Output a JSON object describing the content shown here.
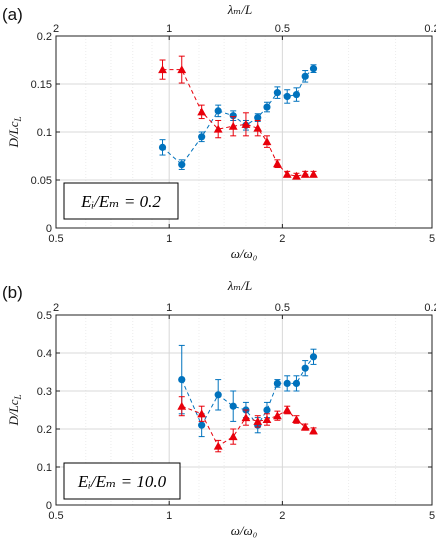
{
  "chart_data": [
    {
      "panel_label": "(a)",
      "type": "scatter",
      "x_scale": "log",
      "xlim": [
        0.5,
        5
      ],
      "x_ticks": [
        0.5,
        1,
        2,
        5
      ],
      "x_tick_labels": [
        "0.5",
        "1",
        "2",
        "5"
      ],
      "ylim": [
        0,
        0.2
      ],
      "y_ticks": [
        0,
        0.05,
        0.1,
        0.15,
        0.2
      ],
      "y_tick_labels": [
        "0",
        "0.05",
        "0.1",
        "0.15",
        "0.2"
      ],
      "xlabel": "ω/ω₀",
      "ylabel_main": "D/Lc",
      "ylabel_sub": "L",
      "top_xlabel_main": "λₘ/L",
      "top_tick_labels": [
        "2",
        "1",
        "0.5",
        "0.2"
      ],
      "top_tick_positions_x": [
        0.5,
        1,
        2,
        5
      ],
      "annotation": "Eᵢ/Eₘ = 0.2",
      "grid": true,
      "series": [
        {
          "marker": "circle",
          "color": "#0072bd",
          "x": [
            0.96,
            1.08,
            1.22,
            1.35,
            1.48,
            1.6,
            1.72,
            1.82,
            1.94,
            2.06,
            2.18,
            2.3,
            2.42
          ],
          "y": [
            0.084,
            0.066,
            0.095,
            0.122,
            0.117,
            0.107,
            0.115,
            0.126,
            0.141,
            0.137,
            0.139,
            0.158,
            0.166
          ],
          "err": [
            0.008,
            0.005,
            0.005,
            0.006,
            0.005,
            0.005,
            0.004,
            0.005,
            0.006,
            0.007,
            0.007,
            0.006,
            0.004
          ]
        },
        {
          "marker": "triangle",
          "color": "#e8000b",
          "x": [
            0.96,
            1.08,
            1.22,
            1.35,
            1.48,
            1.6,
            1.72,
            1.82,
            1.94,
            2.06,
            2.18,
            2.3,
            2.42
          ],
          "y": [
            0.165,
            0.165,
            0.121,
            0.103,
            0.106,
            0.108,
            0.104,
            0.09,
            0.067,
            0.056,
            0.054,
            0.056,
            0.056
          ],
          "err": [
            0.01,
            0.014,
            0.007,
            0.009,
            0.01,
            0.012,
            0.008,
            0.006,
            0.004,
            0.003,
            0.003,
            0.003,
            0.003
          ]
        }
      ]
    },
    {
      "panel_label": "(b)",
      "type": "scatter",
      "x_scale": "log",
      "xlim": [
        0.5,
        5
      ],
      "x_ticks": [
        0.5,
        1,
        2,
        5
      ],
      "x_tick_labels": [
        "0.5",
        "1",
        "2",
        "5"
      ],
      "ylim": [
        0,
        0.5
      ],
      "y_ticks": [
        0,
        0.1,
        0.2,
        0.3,
        0.4,
        0.5
      ],
      "y_tick_labels": [
        "0",
        "0.1",
        "0.2",
        "0.3",
        "0.4",
        "0.5"
      ],
      "xlabel": "ω/ω₀",
      "ylabel_main": "D/Lc",
      "ylabel_sub": "L",
      "top_xlabel_main": "λₘ/L",
      "top_tick_labels": [
        "2",
        "1",
        "0.5",
        "0.2"
      ],
      "top_tick_positions_x": [
        0.5,
        1,
        2,
        5
      ],
      "annotation": "Eᵢ/Eₘ = 10.0",
      "grid": true,
      "series": [
        {
          "marker": "circle",
          "color": "#0072bd",
          "x": [
            1.08,
            1.22,
            1.35,
            1.48,
            1.6,
            1.72,
            1.82,
            1.94,
            2.06,
            2.18,
            2.3,
            2.42
          ],
          "y": [
            0.33,
            0.21,
            0.29,
            0.26,
            0.25,
            0.21,
            0.25,
            0.32,
            0.32,
            0.32,
            0.36,
            0.39
          ],
          "err": [
            0.09,
            0.03,
            0.04,
            0.04,
            0.02,
            0.02,
            0.02,
            0.01,
            0.02,
            0.02,
            0.02,
            0.02
          ]
        },
        {
          "marker": "triangle",
          "color": "#e8000b",
          "x": [
            1.08,
            1.22,
            1.35,
            1.48,
            1.6,
            1.72,
            1.82,
            1.94,
            2.06,
            2.18,
            2.3,
            2.42
          ],
          "y": [
            0.26,
            0.24,
            0.155,
            0.18,
            0.23,
            0.22,
            0.225,
            0.235,
            0.25,
            0.225,
            0.205,
            0.195
          ],
          "err": [
            0.025,
            0.02,
            0.015,
            0.02,
            0.02,
            0.015,
            0.015,
            0.012,
            0.01,
            0.01,
            0.008,
            0.008
          ]
        }
      ]
    }
  ]
}
